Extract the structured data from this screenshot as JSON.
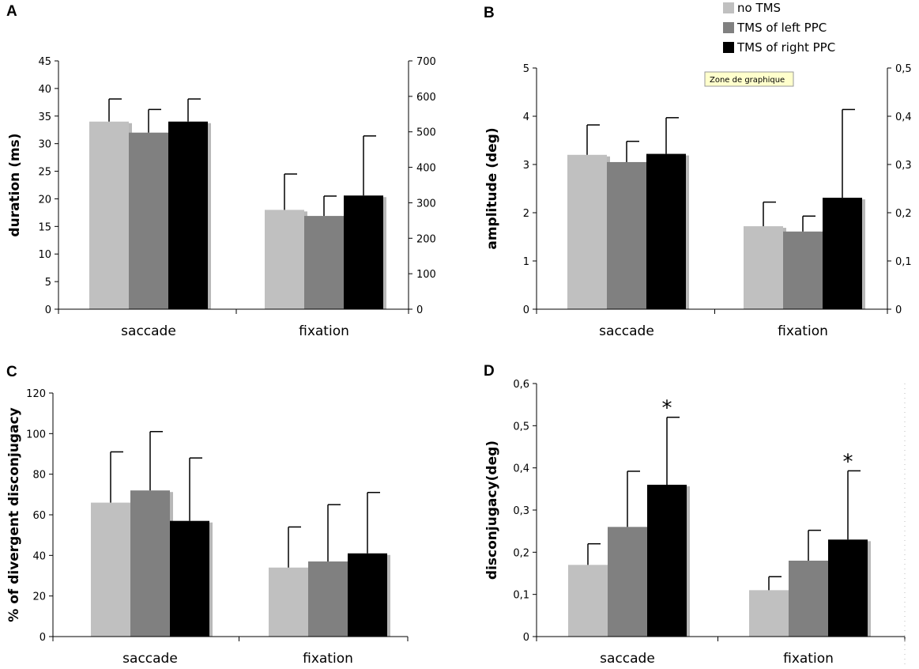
{
  "colors": {
    "no_tms": "#c0c0c0",
    "left_ppc": "#808080",
    "right_ppc": "#000000",
    "bar_shadow": "#b8b8b8",
    "tooltip_bg": "#ffffcc"
  },
  "legend": {
    "entries": [
      "no TMS",
      "TMS of left PPC",
      "TMS of right PPC"
    ]
  },
  "tooltip": {
    "text": "Zone de graphique"
  },
  "chart_data": [
    {
      "panel": "A",
      "type": "bar",
      "categories": [
        "saccade",
        "fixation"
      ],
      "series": [
        {
          "name": "no TMS",
          "values": [
            34,
            18
          ],
          "errors": [
            4.1,
            6.5
          ]
        },
        {
          "name": "TMS of left PPC",
          "values": [
            32,
            16.9
          ],
          "errors": [
            4.2,
            3.6
          ]
        },
        {
          "name": "TMS of right PPC",
          "values": [
            34,
            20.6
          ],
          "errors": [
            4.1,
            10.8
          ]
        }
      ],
      "ylabel": "duration (ms)",
      "ylim": [
        0,
        45
      ],
      "yticks": [
        "0",
        "5",
        "10",
        "15",
        "20",
        "25",
        "30",
        "35",
        "40",
        "45"
      ],
      "y2lim": [
        0,
        700
      ],
      "y2ticks": [
        "0",
        "100",
        "200",
        "300",
        "400",
        "500",
        "600",
        "700"
      ],
      "annotations": []
    },
    {
      "panel": "B",
      "type": "bar",
      "categories": [
        "saccade",
        "fixation"
      ],
      "series": [
        {
          "name": "no TMS",
          "values": [
            3.2,
            1.72
          ],
          "errors": [
            0.62,
            0.5
          ]
        },
        {
          "name": "TMS of left PPC",
          "values": [
            3.05,
            1.61
          ],
          "errors": [
            0.43,
            0.32
          ]
        },
        {
          "name": "TMS of right PPC",
          "values": [
            3.22,
            2.31
          ],
          "errors": [
            0.75,
            1.83
          ]
        }
      ],
      "ylabel": "amplitude (deg)",
      "ylim": [
        0,
        5
      ],
      "yticks": [
        "0",
        "1",
        "2",
        "3",
        "4",
        "5"
      ],
      "y2lim": [
        0,
        0.5
      ],
      "y2ticks": [
        "0",
        "0,1",
        "0,2",
        "0,3",
        "0,4",
        "0,5"
      ],
      "annotations": []
    },
    {
      "panel": "C",
      "type": "bar",
      "categories": [
        "saccade",
        "fixation"
      ],
      "series": [
        {
          "name": "no TMS",
          "values": [
            66,
            34
          ],
          "errors": [
            25,
            20
          ]
        },
        {
          "name": "TMS of left PPC",
          "values": [
            72,
            37
          ],
          "errors": [
            29,
            28
          ]
        },
        {
          "name": "TMS of right PPC",
          "values": [
            57,
            41
          ],
          "errors": [
            31,
            30
          ]
        }
      ],
      "ylabel": "% of divergent disconjugacy",
      "ylim": [
        0,
        120
      ],
      "yticks": [
        "0",
        "20",
        "40",
        "60",
        "80",
        "100",
        "120"
      ],
      "annotations": []
    },
    {
      "panel": "D",
      "type": "bar",
      "categories": [
        "saccade",
        "fixation"
      ],
      "series": [
        {
          "name": "no TMS",
          "values": [
            0.17,
            0.11
          ],
          "errors": [
            0.05,
            0.032
          ]
        },
        {
          "name": "TMS of left PPC",
          "values": [
            0.26,
            0.18
          ],
          "errors": [
            0.132,
            0.072
          ]
        },
        {
          "name": "TMS of right PPC",
          "values": [
            0.36,
            0.23
          ],
          "errors": [
            0.16,
            0.163
          ]
        }
      ],
      "ylabel": "disconjugacy(deg)",
      "ylim": [
        0,
        0.6
      ],
      "yticks": [
        "0",
        "0,1",
        "0,2",
        "0,3",
        "0,4",
        "0,5",
        "0,6"
      ],
      "annotations": [
        {
          "category": 0,
          "series": 2,
          "text": "*"
        },
        {
          "category": 1,
          "series": 2,
          "text": "*"
        }
      ]
    }
  ]
}
